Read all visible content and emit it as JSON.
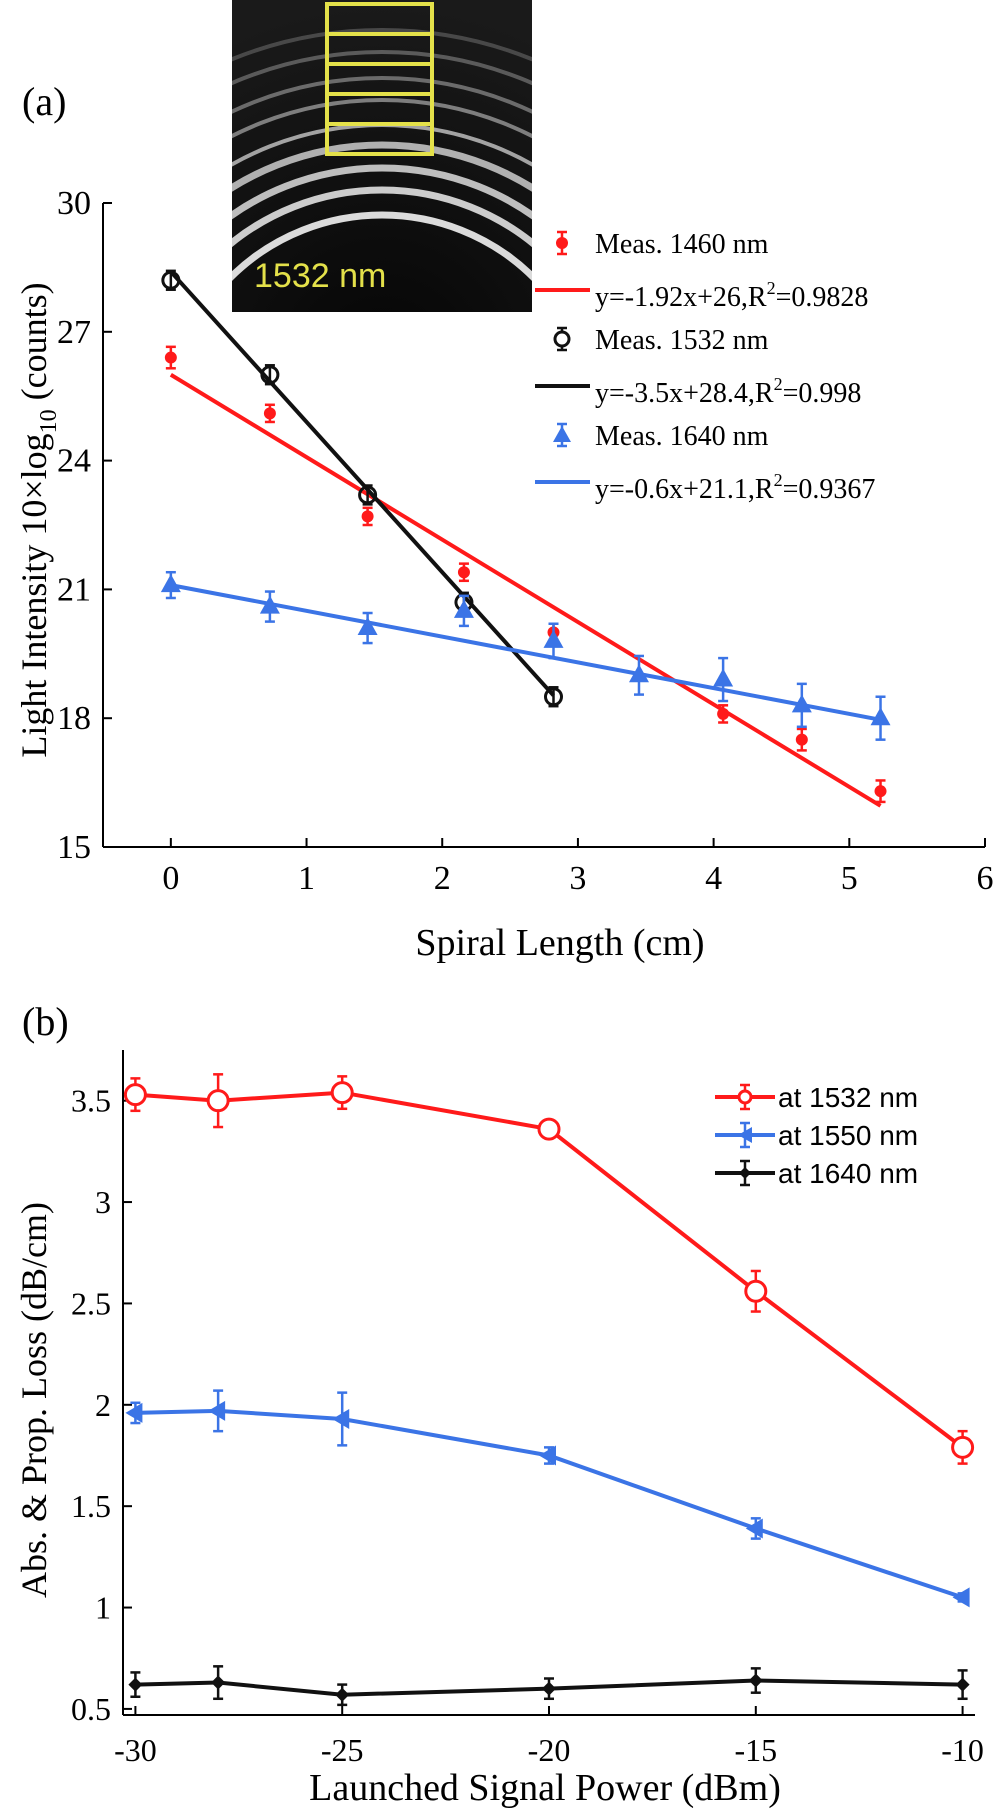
{
  "chart_data": [
    {
      "id": "a",
      "type": "scatter",
      "panel_label": "(a)",
      "xlabel": "Spiral Length (cm)",
      "ylabel_main": "Light Intensity 10×log",
      "ylabel_sub": "10",
      "ylabel_tail": " (counts)",
      "xlim": [
        -0.5,
        6
      ],
      "ylim": [
        15,
        30
      ],
      "xticks": [
        0,
        1,
        2,
        3,
        4,
        5,
        6
      ],
      "yticks": [
        15,
        18,
        21,
        24,
        27,
        30
      ],
      "inset_label": "1532 nm",
      "series": [
        {
          "name": "Meas. 1460 nm",
          "color": "#ff1a1a",
          "marker": "dot",
          "x": [
            0,
            0.73,
            1.45,
            2.16,
            2.82,
            4.07,
            4.65,
            5.23
          ],
          "y": [
            26.4,
            25.1,
            22.7,
            21.4,
            20.0,
            18.1,
            17.5,
            16.3
          ],
          "err": [
            0.25,
            0.2,
            0.2,
            0.2,
            0.2,
            0.2,
            0.25,
            0.25
          ]
        },
        {
          "name": "Meas. 1532 nm",
          "color": "#111111",
          "marker": "circle",
          "x": [
            0,
            0.73,
            1.45,
            2.16,
            2.82
          ],
          "y": [
            28.2,
            26.0,
            23.2,
            20.7,
            18.5
          ],
          "err": [
            0.22,
            0.22,
            0.22,
            0.22,
            0.22
          ]
        },
        {
          "name": "Meas. 1640 nm",
          "color": "#3b74e6",
          "marker": "triangle",
          "x": [
            0,
            0.73,
            1.45,
            2.16,
            2.82,
            3.45,
            4.07,
            4.65,
            5.23
          ],
          "y": [
            21.1,
            20.6,
            20.1,
            20.5,
            19.8,
            19.0,
            18.9,
            18.3,
            18.0
          ],
          "err": [
            0.3,
            0.35,
            0.35,
            0.35,
            0.4,
            0.45,
            0.5,
            0.5,
            0.5
          ]
        }
      ],
      "fits": [
        {
          "label": "y=-1.92x+26,R",
          "r2": "=0.9828",
          "color": "#ff1a1a",
          "slope": -1.92,
          "intercept": 26,
          "x_range": [
            0,
            5.23
          ]
        },
        {
          "label": "y=-3.5x+28.4,R",
          "r2": "=0.998",
          "color": "#111111",
          "slope": -3.5,
          "intercept": 28.4,
          "x_range": [
            0,
            2.82
          ]
        },
        {
          "label": "y=-0.6x+21.1,R",
          "r2": "=0.9367",
          "color": "#3b74e6",
          "slope": -0.6,
          "intercept": 21.1,
          "x_range": [
            0,
            5.23
          ]
        }
      ]
    },
    {
      "id": "b",
      "type": "line",
      "panel_label": "(b)",
      "xlabel": "Launched Signal Power (dBm)",
      "ylabel": "Abs. & Prop. Loss (dB/cm)",
      "xlim": [
        -30.3,
        -9.7
      ],
      "ylim": [
        0.47,
        3.75
      ],
      "xticks": [
        -30,
        -25,
        -20,
        -15,
        -10
      ],
      "yticks": [
        0.5,
        1,
        1.5,
        2,
        2.5,
        3,
        3.5
      ],
      "ytick_labels": [
        "0.5",
        "1",
        "1.5",
        "2",
        "2.5",
        "3",
        "3.5"
      ],
      "x": [
        -30,
        -28,
        -25,
        -20,
        -15,
        -10
      ],
      "series": [
        {
          "name": "at 1532 nm",
          "color": "#ff1a1a",
          "marker": "circle",
          "values": [
            3.53,
            3.5,
            3.54,
            3.36,
            2.56,
            1.79
          ],
          "err": [
            0.08,
            0.13,
            0.08,
            0.03,
            0.1,
            0.08
          ]
        },
        {
          "name": "at 1550 nm",
          "color": "#3b74e6",
          "marker": "triangle-left",
          "values": [
            1.96,
            1.97,
            1.93,
            1.75,
            1.39,
            1.05
          ],
          "err": [
            0.05,
            0.1,
            0.13,
            0.04,
            0.05,
            0.02
          ]
        },
        {
          "name": "at 1640 nm",
          "color": "#111111",
          "marker": "diamond",
          "values": [
            0.62,
            0.63,
            0.57,
            0.6,
            0.64,
            0.62
          ],
          "err": [
            0.06,
            0.08,
            0.05,
            0.05,
            0.06,
            0.07
          ]
        }
      ]
    }
  ]
}
